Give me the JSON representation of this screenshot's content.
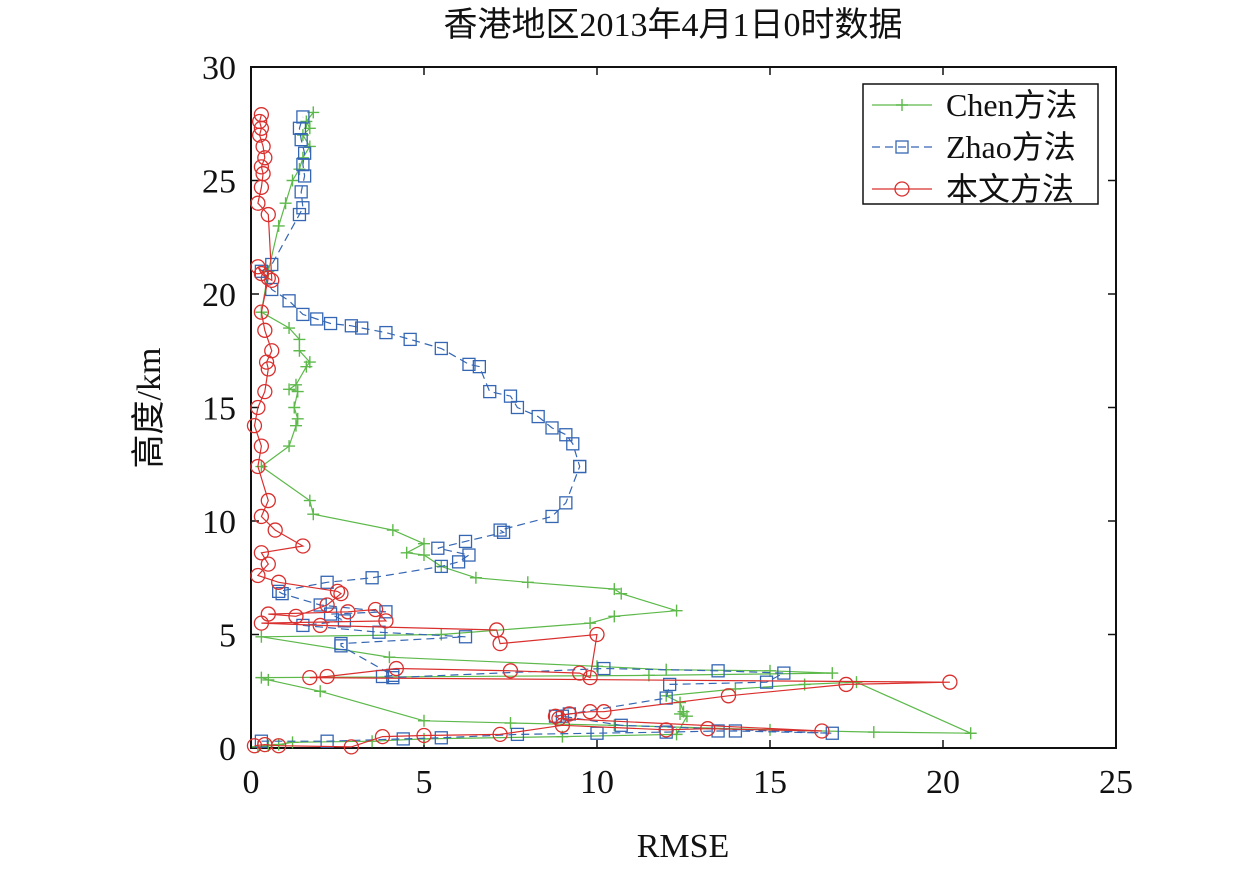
{
  "chart_data": {
    "type": "line",
    "title": "香港地区2013年4月1日0时数据",
    "xlabel": "RMSE",
    "ylabel": "高度/km",
    "xlim": [
      0,
      25
    ],
    "ylim": [
      0,
      30
    ],
    "xticks": [
      "0",
      "5",
      "10",
      "15",
      "20",
      "25"
    ],
    "yticks": [
      "0",
      "5",
      "10",
      "15",
      "20",
      "25",
      "30"
    ],
    "grid": false,
    "legend_position": "top-right",
    "series": [
      {
        "name": "Chen方法",
        "color": "#5cb94a",
        "marker": "plus",
        "line_style": "solid",
        "x": [
          0.2,
          0.5,
          0.8,
          1.2,
          3.5,
          5.0,
          9.0,
          12.3,
          12.6,
          12.4,
          12.5,
          12.4,
          12.0,
          14.0,
          16.0,
          17.5,
          20.8,
          18.0,
          15.0,
          10.5,
          7.5,
          5.0,
          2.0,
          0.5,
          0.3,
          11.5,
          16.8,
          15.0,
          12.0,
          10.0,
          4.0,
          0.3,
          5.5,
          9.8,
          10.5,
          12.3,
          10.7,
          10.5,
          8.0,
          6.5,
          5.5,
          5.0,
          4.5,
          5.0,
          4.1,
          1.8,
          1.7,
          0.3,
          1.1,
          1.3,
          1.35,
          1.25,
          1.35,
          1.1,
          1.3,
          1.6,
          1.7,
          1.4,
          1.4,
          1.1,
          0.3,
          0.5,
          0.8,
          1.0,
          1.2,
          1.4,
          1.5,
          1.7,
          1.5,
          1.7,
          1.6,
          1.8
        ],
        "y": [
          0.05,
          0.1,
          0.15,
          0.25,
          0.3,
          0.4,
          0.5,
          0.6,
          1.4,
          1.5,
          1.6,
          2.0,
          2.3,
          2.6,
          2.8,
          2.9,
          0.65,
          0.7,
          0.8,
          1.0,
          1.1,
          1.2,
          2.5,
          3.0,
          3.1,
          3.2,
          3.3,
          3.4,
          3.45,
          3.6,
          4.0,
          4.9,
          5.0,
          5.5,
          5.8,
          6.05,
          6.8,
          7.0,
          7.3,
          7.5,
          8.0,
          8.5,
          8.6,
          9.0,
          9.6,
          10.3,
          10.9,
          12.4,
          13.3,
          14.2,
          14.5,
          15.0,
          15.7,
          15.8,
          16.0,
          16.8,
          17.0,
          17.5,
          18.0,
          18.5,
          19.2,
          21.0,
          23.0,
          24.0,
          25.0,
          25.5,
          26.0,
          26.5,
          27.0,
          27.3,
          27.6,
          28.0
        ]
      },
      {
        "name": "Zhao方法",
        "color": "#3566b3",
        "marker": "square",
        "line_style": "dashed",
        "x": [
          0.3,
          2.2,
          4.4,
          5.5,
          7.7,
          10.0,
          12.0,
          13.5,
          14.0,
          16.8,
          10.7,
          9.0,
          8.8,
          9.2,
          12.0,
          12.1,
          14.9,
          15.4,
          13.5,
          10.2,
          4.1,
          3.8,
          4.1,
          2.6,
          2.6,
          6.2,
          3.7,
          1.5,
          2.7,
          2.3,
          3.9,
          2.0,
          0.9,
          0.8,
          2.2,
          3.5,
          5.5,
          6.0,
          6.3,
          5.4,
          6.2,
          7.3,
          7.2,
          8.7,
          9.1,
          9.5,
          9.5,
          9.3,
          9.1,
          8.7,
          8.3,
          7.7,
          7.5,
          6.9,
          6.6,
          6.3,
          5.5,
          4.6,
          3.9,
          3.2,
          2.9,
          2.3,
          1.9,
          1.5,
          1.1,
          0.6,
          0.3,
          0.6,
          1.4,
          1.5,
          1.45,
          1.55,
          1.5,
          1.55,
          1.45,
          1.4,
          1.5
        ],
        "y": [
          0.3,
          0.3,
          0.4,
          0.45,
          0.6,
          0.65,
          0.7,
          0.75,
          0.75,
          0.65,
          1.0,
          1.4,
          1.4,
          1.5,
          2.2,
          2.8,
          2.9,
          3.3,
          3.4,
          3.5,
          3.1,
          3.15,
          3.2,
          4.5,
          4.6,
          4.9,
          5.1,
          5.4,
          5.6,
          5.9,
          6.0,
          6.3,
          6.8,
          6.9,
          7.3,
          7.5,
          8.0,
          8.2,
          8.5,
          8.8,
          9.1,
          9.5,
          9.6,
          10.2,
          10.8,
          12.4,
          12.4,
          13.4,
          13.8,
          14.1,
          14.6,
          15.0,
          15.5,
          15.7,
          16.8,
          16.9,
          17.6,
          18.0,
          18.3,
          18.5,
          18.6,
          18.7,
          18.9,
          19.1,
          19.7,
          20.2,
          21.0,
          21.3,
          23.5,
          23.8,
          24.5,
          25.2,
          25.7,
          26.2,
          26.8,
          27.3,
          27.8
        ]
      },
      {
        "name": "本文方法",
        "color": "#d9302e",
        "marker": "circle",
        "line_style": "solid",
        "x": [
          0.1,
          0.4,
          0.8,
          2.9,
          3.8,
          5.0,
          7.2,
          9.0,
          12.0,
          13.2,
          16.5,
          8.9,
          8.8,
          9.2,
          9.8,
          10.2,
          13.8,
          17.2,
          20.2,
          1.7,
          2.2,
          4.2,
          7.5,
          9.5,
          9.8,
          10.0,
          7.2,
          7.1,
          2.0,
          0.3,
          3.9,
          3.6,
          2.8,
          0.5,
          1.3,
          2.2,
          2.6,
          2.5,
          0.8,
          0.2,
          0.5,
          0.3,
          1.5,
          0.7,
          0.3,
          0.5,
          0.2,
          0.3,
          0.1,
          0.2,
          0.4,
          0.5,
          0.45,
          0.6,
          0.4,
          0.3,
          0.5,
          0.2,
          0.3,
          0.6,
          0.5,
          0.2,
          0.3,
          0.35,
          0.3,
          0.4,
          0.35,
          0.25,
          0.3,
          0.25,
          0.3
        ],
        "y": [
          0.1,
          0.15,
          0.1,
          0.05,
          0.5,
          0.55,
          0.6,
          1.0,
          0.8,
          0.85,
          0.75,
          1.3,
          1.4,
          1.5,
          1.6,
          1.6,
          2.3,
          2.8,
          2.9,
          3.1,
          3.15,
          3.5,
          3.4,
          3.3,
          3.1,
          5.0,
          4.6,
          5.2,
          5.4,
          5.5,
          5.6,
          6.1,
          6.0,
          5.9,
          5.8,
          6.3,
          6.8,
          6.9,
          7.3,
          7.6,
          8.1,
          8.6,
          8.9,
          9.6,
          10.2,
          10.9,
          12.4,
          13.3,
          14.2,
          15.0,
          15.7,
          16.7,
          17.0,
          17.5,
          18.4,
          19.2,
          20.7,
          21.2,
          20.9,
          20.6,
          23.5,
          24.0,
          24.7,
          25.3,
          25.6,
          26.0,
          26.5,
          27.0,
          27.3,
          27.6,
          27.9
        ]
      }
    ]
  }
}
